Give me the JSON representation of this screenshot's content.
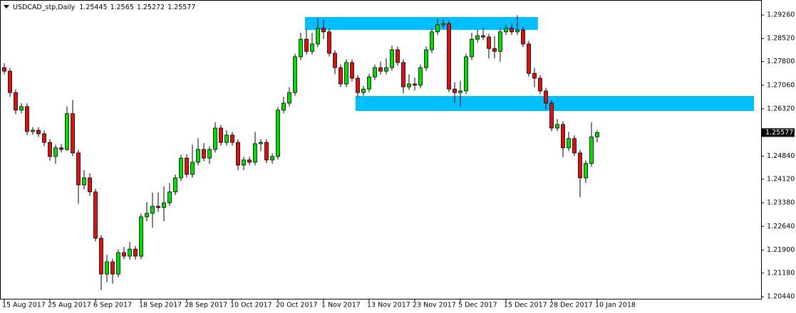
{
  "chart_data": {
    "type": "candlestick",
    "title": "USDCAD_stp,Daily",
    "categories": [
      "15 Aug 2017",
      null,
      null,
      null,
      null,
      null,
      null,
      null,
      "25 Aug 2017",
      null,
      null,
      null,
      null,
      null,
      null,
      null,
      "6 Sep 2017",
      null,
      null,
      null,
      null,
      null,
      null,
      null,
      "18 Sep 2017",
      null,
      null,
      null,
      null,
      null,
      null,
      null,
      "28 Sep 2017",
      null,
      null,
      null,
      null,
      null,
      null,
      null,
      "10 Oct 2017",
      null,
      null,
      null,
      null,
      null,
      null,
      null,
      "20 Oct 2017",
      null,
      null,
      null,
      null,
      null,
      null,
      null,
      "1 Nov 2017",
      null,
      null,
      null,
      null,
      null,
      null,
      null,
      "13 Nov 2017",
      null,
      null,
      null,
      null,
      null,
      null,
      null,
      "23 Nov 2017",
      null,
      null,
      null,
      null,
      null,
      null,
      null,
      "5 Dec 2017",
      null,
      null,
      null,
      null,
      null,
      null,
      null,
      "15 Dec 2017",
      null,
      null,
      null,
      null,
      null,
      null,
      null,
      "28 Dec 2017",
      null,
      null,
      null,
      null,
      null,
      null,
      null,
      "10 Jan 2018"
    ],
    "open": [
      1.2761,
      1.275,
      1.2683,
      1.2628,
      1.2639,
      1.2561,
      1.2565,
      1.2554,
      1.2527,
      1.2483,
      1.251,
      1.2505,
      1.2617,
      1.2494,
      1.2394,
      1.2416,
      1.2372,
      1.2227,
      1.2115,
      1.2153,
      1.2115,
      1.2182,
      1.2171,
      1.2193,
      1.2171,
      1.2294,
      1.2305,
      1.2327,
      1.2323,
      1.2338,
      1.2372,
      1.2416,
      1.2478,
      1.2427,
      1.2465,
      1.2505,
      1.2478,
      1.2505,
      1.2572,
      1.2527,
      1.255,
      1.2527,
      1.2456,
      1.2472,
      1.2465,
      1.2523,
      1.2527,
      1.2472,
      1.2483,
      1.2628,
      1.265,
      1.2683,
      1.2795,
      1.285,
      1.2812,
      1.2835,
      1.2884,
      1.2873,
      1.2806,
      1.2761,
      1.271,
      1.2777,
      1.2728,
      1.2683,
      1.2694,
      1.2732,
      1.2761,
      1.275,
      1.2761,
      1.2817,
      1.2777,
      1.2701,
      1.271,
      1.2706,
      1.2761,
      1.2817,
      1.2873,
      1.2895,
      1.2899,
      1.2694,
      1.2683,
      1.2688,
      1.2795,
      1.285,
      1.2861,
      1.2857,
      1.2821,
      1.2812,
      1.2873,
      1.2884,
      1.2873,
      1.2879,
      1.2835,
      1.2743,
      1.2728,
      1.2688,
      1.265,
      1.2572,
      1.2583,
      1.251,
      1.2539,
      1.2494,
      1.2416,
      1.2461,
      1.25445
    ],
    "high": [
      1.2775,
      1.276,
      1.2693,
      1.265,
      1.2649,
      1.2575,
      1.2575,
      1.2564,
      1.2537,
      1.252,
      1.2522,
      1.264,
      1.266,
      1.2504,
      1.244,
      1.243,
      1.2382,
      1.2237,
      1.2175,
      1.2163,
      1.2192,
      1.22,
      1.2215,
      1.2203,
      1.2304,
      1.234,
      1.237,
      1.237,
      1.239,
      1.24,
      1.2426,
      1.2488,
      1.249,
      1.252,
      1.254,
      1.2525,
      1.2515,
      1.259,
      1.2582,
      1.2565,
      1.256,
      1.2537,
      1.2482,
      1.2482,
      1.256,
      1.2537,
      1.2537,
      1.2493,
      1.2638,
      1.267,
      1.27,
      1.2805,
      1.287,
      1.288,
      1.287,
      1.2915,
      1.2912,
      1.2883,
      1.2816,
      1.2771,
      1.2787,
      1.2787,
      1.2738,
      1.2704,
      1.2742,
      1.2771,
      1.278,
      1.279,
      1.283,
      1.2827,
      1.2787,
      1.274,
      1.273,
      1.2771,
      1.2827,
      1.2883,
      1.2915,
      1.2912,
      1.2909,
      1.2715,
      1.272,
      1.2805,
      1.287,
      1.288,
      1.2885,
      1.2867,
      1.286,
      1.2883,
      1.2894,
      1.29,
      1.2925,
      1.2889,
      1.2845,
      1.276,
      1.2738,
      1.2698,
      1.266,
      1.26,
      1.2593,
      1.256,
      1.2549,
      1.2504,
      1.2471,
      1.259,
      1.2565
    ],
    "low": [
      1.274,
      1.267,
      1.2615,
      1.2618,
      1.255,
      1.2551,
      1.2544,
      1.2515,
      1.247,
      1.246,
      1.2495,
      1.25,
      1.2484,
      1.2335,
      1.238,
      1.236,
      1.2217,
      1.2065,
      1.209,
      1.2085,
      1.2105,
      1.2161,
      1.216,
      1.216,
      1.2161,
      1.228,
      1.226,
      1.231,
      1.228,
      1.2328,
      1.2362,
      1.2406,
      1.2417,
      1.2417,
      1.2455,
      1.2468,
      1.246,
      1.2495,
      1.2517,
      1.2517,
      1.2517,
      1.244,
      1.244,
      1.2455,
      1.2455,
      1.25,
      1.2462,
      1.246,
      1.2473,
      1.2618,
      1.264,
      1.2673,
      1.2785,
      1.2802,
      1.2802,
      1.2825,
      1.285,
      1.2796,
      1.274,
      1.27,
      1.27,
      1.2718,
      1.267,
      1.2673,
      1.2684,
      1.2722,
      1.274,
      1.274,
      1.2751,
      1.2767,
      1.268,
      1.2691,
      1.269,
      1.2696,
      1.2751,
      1.2807,
      1.2863,
      1.2885,
      1.2684,
      1.265,
      1.264,
      1.2678,
      1.2785,
      1.284,
      1.2847,
      1.279,
      1.279,
      1.278,
      1.2863,
      1.2863,
      1.2863,
      1.2825,
      1.2733,
      1.27,
      1.2678,
      1.263,
      1.2562,
      1.2562,
      1.248,
      1.25,
      1.2484,
      1.2355,
      1.24,
      1.2451,
      1.25272
    ],
    "close": [
      1.275,
      1.2683,
      1.2628,
      1.2639,
      1.2561,
      1.2565,
      1.2554,
      1.2527,
      1.2483,
      1.251,
      1.2505,
      1.2617,
      1.2494,
      1.2394,
      1.2416,
      1.2372,
      1.2227,
      1.2115,
      1.2153,
      1.2115,
      1.2182,
      1.2171,
      1.2193,
      1.2171,
      1.2294,
      1.2305,
      1.2327,
      1.2323,
      1.2338,
      1.2372,
      1.2416,
      1.2478,
      1.2427,
      1.2465,
      1.2505,
      1.2478,
      1.2505,
      1.2572,
      1.2527,
      1.255,
      1.2527,
      1.2456,
      1.2472,
      1.2465,
      1.2523,
      1.2527,
      1.2472,
      1.2483,
      1.2628,
      1.265,
      1.2683,
      1.2795,
      1.285,
      1.2812,
      1.2835,
      1.2884,
      1.2873,
      1.2806,
      1.2761,
      1.271,
      1.2777,
      1.2728,
      1.2683,
      1.2694,
      1.2732,
      1.2761,
      1.275,
      1.2761,
      1.2817,
      1.2777,
      1.2701,
      1.271,
      1.2706,
      1.2761,
      1.2817,
      1.2873,
      1.2895,
      1.2899,
      1.2694,
      1.2683,
      1.2688,
      1.2795,
      1.285,
      1.2861,
      1.2857,
      1.2821,
      1.2812,
      1.2873,
      1.2884,
      1.2873,
      1.2879,
      1.2835,
      1.2743,
      1.2728,
      1.2688,
      1.265,
      1.2572,
      1.2583,
      1.251,
      1.2539,
      1.2494,
      1.2416,
      1.2461,
      1.25445,
      1.25577
    ],
    "up_color": "#00e000",
    "down_color": "#e01010",
    "ylim": [
      1.20375,
      1.29728
    ],
    "yticks": [
      {
        "value": 1.2926,
        "label": "1.29260"
      },
      {
        "value": 1.2852,
        "label": "1.28520"
      },
      {
        "value": 1.278,
        "label": "1.27800"
      },
      {
        "value": 1.2706,
        "label": "1.27060"
      },
      {
        "value": 1.2632,
        "label": "1.26320"
      },
      {
        "value": 1.2484,
        "label": "1.24840"
      },
      {
        "value": 1.2412,
        "label": "1.24120"
      },
      {
        "value": 1.2338,
        "label": "1.23380"
      },
      {
        "value": 1.2264,
        "label": "1.22640"
      },
      {
        "value": 1.219,
        "label": "1.21900"
      },
      {
        "value": 1.2118,
        "label": "1.21180"
      },
      {
        "value": 1.2044,
        "label": "1.20440"
      }
    ],
    "zones": [
      {
        "xlim": [
          52.75,
          93.6
        ],
        "ylim": [
          1.28793,
          1.29194
        ],
        "color": "#00bfff"
      },
      {
        "xlim": [
          61.6,
          131.5
        ],
        "ylim": [
          1.26254,
          1.26722
        ],
        "color": "#00bfff"
      }
    ]
  }
}
